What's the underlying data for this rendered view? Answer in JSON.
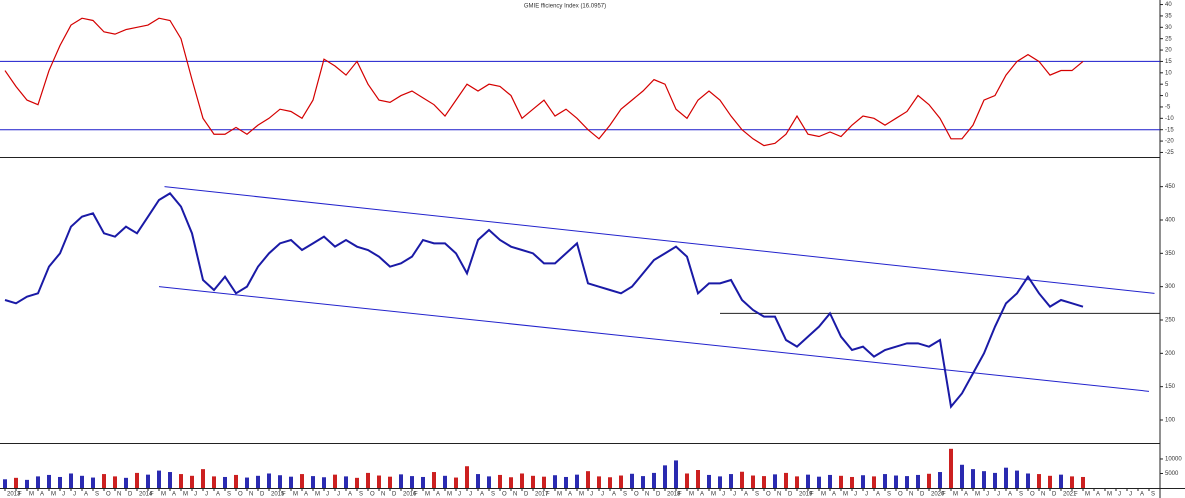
{
  "chart_data": [
    {
      "type": "line",
      "title": "GMIE fficiency Index (16.0957)",
      "color": "#d40000",
      "values": [
        11,
        4,
        -2,
        -4,
        11,
        22,
        31,
        34,
        33,
        28,
        27,
        29,
        30,
        31,
        34,
        33,
        25,
        7,
        -10,
        -17,
        -17,
        -14,
        -17,
        -13,
        -10,
        -6,
        -7,
        -10,
        -2,
        16,
        13,
        9,
        15,
        5,
        -2,
        -3,
        0,
        2,
        -1,
        -4,
        -9,
        -2,
        5,
        2,
        5,
        4,
        0,
        -10,
        -6,
        -2,
        -9,
        -6,
        -10,
        -15,
        -19,
        -13,
        -6,
        -2,
        2,
        7,
        5,
        -6,
        -10,
        -2,
        2,
        -2,
        -9,
        -15,
        -19,
        -22,
        -21,
        -17,
        -9,
        -17,
        -18,
        -16,
        -18,
        -13,
        -9,
        -10,
        -13,
        -10,
        -7,
        0,
        -4,
        -10,
        -19,
        -19,
        -13,
        -2,
        0,
        9,
        15,
        18,
        15,
        9,
        11,
        11,
        15,
        null,
        null,
        null,
        null,
        null,
        null
      ],
      "ylim": [
        -27,
        42
      ],
      "yticks": [
        40,
        35,
        30,
        25,
        20,
        15,
        10,
        5,
        0,
        -5,
        -10,
        -15,
        -20,
        -25
      ],
      "hlines": [
        15,
        -15
      ],
      "hline_color": "#1a1acc"
    },
    {
      "type": "line",
      "color": "#1a1aa6",
      "values": [
        280,
        275,
        285,
        290,
        330,
        350,
        390,
        405,
        410,
        380,
        375,
        390,
        380,
        405,
        430,
        440,
        420,
        380,
        310,
        295,
        315,
        290,
        300,
        330,
        350,
        365,
        370,
        355,
        365,
        375,
        360,
        370,
        360,
        355,
        345,
        330,
        335,
        345,
        370,
        365,
        365,
        350,
        320,
        370,
        385,
        370,
        360,
        355,
        350,
        335,
        335,
        350,
        365,
        305,
        300,
        295,
        290,
        300,
        320,
        340,
        350,
        360,
        345,
        290,
        305,
        305,
        310,
        280,
        265,
        255,
        255,
        220,
        210,
        225,
        240,
        260,
        225,
        205,
        210,
        195,
        205,
        210,
        215,
        215,
        210,
        220,
        120,
        140,
        170,
        200,
        240,
        275,
        290,
        315,
        290,
        270,
        280,
        275,
        270,
        null,
        null,
        null,
        null,
        null,
        null
      ],
      "ylim": [
        70,
        490
      ],
      "yticks": [
        100,
        150,
        200,
        250,
        300,
        350,
        400,
        450
      ],
      "trendlines": [
        {
          "x": [
            14.5,
            104.5
          ],
          "y": [
            450,
            290
          ],
          "color": "#2222cc"
        },
        {
          "x": [
            14,
            104
          ],
          "y": [
            300,
            143
          ],
          "color": "#2222cc"
        },
        {
          "x": [
            65,
            105
          ],
          "y": [
            260,
            260
          ],
          "color": "#222222"
        }
      ]
    },
    {
      "type": "bar",
      "color": "#2a2ab0",
      "down_color": "#cc2020",
      "categories": [
        "2013",
        "F",
        "M",
        "A",
        "M",
        "J",
        "J",
        "A",
        "S",
        "O",
        "N",
        "D",
        "2014",
        "F",
        "M",
        "A",
        "M",
        "J",
        "J",
        "A",
        "S",
        "O",
        "N",
        "D",
        "2015",
        "F",
        "M",
        "A",
        "M",
        "J",
        "J",
        "A",
        "S",
        "O",
        "N",
        "D",
        "2016",
        "F",
        "M",
        "A",
        "M",
        "J",
        "J",
        "A",
        "S",
        "O",
        "N",
        "D",
        "2017",
        "F",
        "M",
        "A",
        "M",
        "J",
        "J",
        "A",
        "S",
        "O",
        "N",
        "D",
        "2018",
        "F",
        "M",
        "A",
        "M",
        "J",
        "J",
        "A",
        "S",
        "O",
        "N",
        "D",
        "2019",
        "F",
        "M",
        "A",
        "M",
        "J",
        "J",
        "A",
        "S",
        "O",
        "N",
        "D",
        "2020",
        "F",
        "M",
        "A",
        "M",
        "J",
        "J",
        "A",
        "S",
        "O",
        "N",
        "D",
        "2021",
        "F",
        "M",
        "A",
        "M",
        "J",
        "J",
        "A",
        "S"
      ],
      "values": [
        3000,
        3500,
        2800,
        4000,
        4500,
        3800,
        5000,
        4200,
        3600,
        4800,
        4000,
        3500,
        5200,
        4600,
        6000,
        5500,
        4800,
        4200,
        6500,
        4000,
        3800,
        4500,
        3600,
        4200,
        5000,
        4400,
        3900,
        4800,
        4100,
        3700,
        4600,
        4000,
        3500,
        5200,
        4300,
        3900,
        4700,
        4100,
        3800,
        5500,
        4200,
        3600,
        7500,
        4800,
        4000,
        4500,
        3700,
        5000,
        4200,
        3900,
        4400,
        3800,
        4600,
        5800,
        4000,
        3700,
        4300,
        4900,
        4100,
        5200,
        7800,
        9500,
        5000,
        6200,
        4500,
        4000,
        4800,
        5600,
        4300,
        4100,
        4700,
        5200,
        4000,
        4600,
        3900,
        4500,
        4200,
        3800,
        4400,
        4000,
        4800,
        4300,
        4100,
        4500,
        4900,
        5500,
        13500,
        8000,
        6500,
        5800,
        5200,
        7000,
        6000,
        5000,
        4800,
        4200,
        4600,
        4000,
        3800,
        null,
        null,
        null,
        null,
        null,
        null
      ],
      "ylim": [
        0,
        15500
      ],
      "yticks": [
        5000,
        10000
      ]
    }
  ]
}
